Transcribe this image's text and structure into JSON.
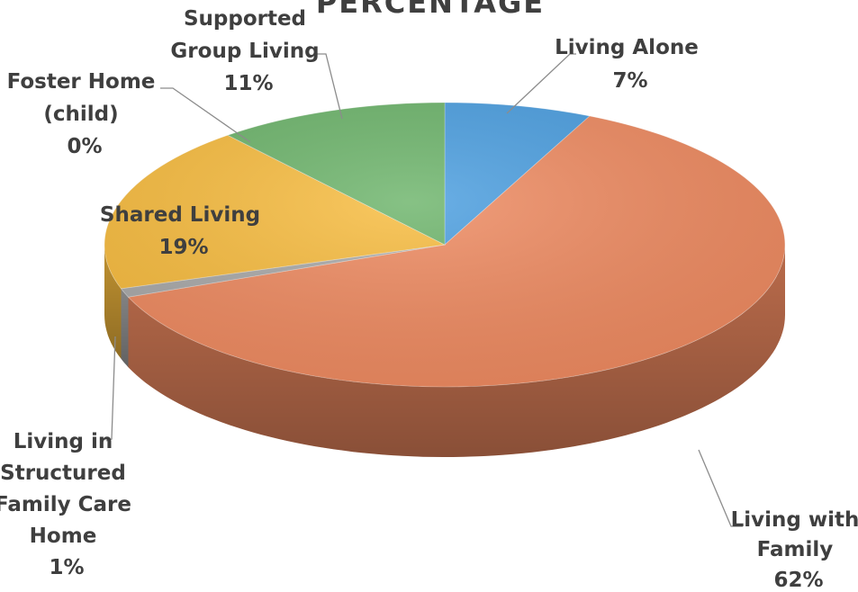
{
  "chart_data": {
    "type": "pie",
    "title": "PERCENTAGE",
    "series": [
      {
        "name": "Living Alone",
        "value": 7,
        "label": "7%",
        "color": "#4a9ee0"
      },
      {
        "name": "Living with Family",
        "value": 62,
        "label": "62%",
        "color": "#ef8a60"
      },
      {
        "name": "Living in Structured Family Care Home",
        "value": 1,
        "label": "1%",
        "color": "#a9a9a9"
      },
      {
        "name": "Shared Living",
        "value": 19,
        "label": "19%",
        "color": "#f8bc3e"
      },
      {
        "name": "Foster Home (child)",
        "value": 0,
        "label": "0%",
        "color": "#3f6fc6"
      },
      {
        "name": "Supported Group Living",
        "value": 11,
        "label": "11%",
        "color": "#6cb46a"
      }
    ],
    "labels": {
      "living_alone": [
        "Living Alone",
        "7%"
      ],
      "living_with_family": [
        "Living with",
        "Family",
        "62%"
      ],
      "structured_family_care": [
        "Living in",
        "Structured",
        "Family Care",
        "Home",
        "1%"
      ],
      "shared_living": [
        "Shared Living",
        "19%"
      ],
      "foster_home": [
        "Foster Home",
        "(child)",
        "0%"
      ],
      "supported_group_living": [
        "Supported",
        "Group Living",
        "11%"
      ]
    }
  }
}
